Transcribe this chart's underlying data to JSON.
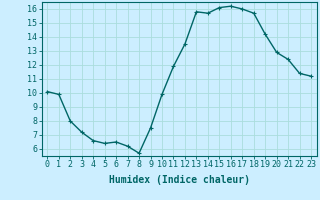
{
  "x": [
    0,
    1,
    2,
    3,
    4,
    5,
    6,
    7,
    8,
    9,
    10,
    11,
    12,
    13,
    14,
    15,
    16,
    17,
    18,
    19,
    20,
    21,
    22,
    23
  ],
  "y": [
    10.1,
    9.9,
    8.0,
    7.2,
    6.6,
    6.4,
    6.5,
    6.2,
    5.7,
    7.5,
    9.9,
    11.9,
    13.5,
    15.8,
    15.7,
    16.1,
    16.2,
    16.0,
    15.7,
    14.2,
    12.9,
    12.4,
    11.4,
    11.2
  ],
  "line_color": "#006666",
  "marker": "+",
  "marker_size": 3,
  "bg_color": "#cceeff",
  "grid_color": "#aadddd",
  "xlabel": "Humidex (Indice chaleur)",
  "xlim": [
    -0.5,
    23.5
  ],
  "ylim": [
    5.5,
    16.5
  ],
  "yticks": [
    6,
    7,
    8,
    9,
    10,
    11,
    12,
    13,
    14,
    15,
    16
  ],
  "xticks": [
    0,
    1,
    2,
    3,
    4,
    5,
    6,
    7,
    8,
    9,
    10,
    11,
    12,
    13,
    14,
    15,
    16,
    17,
    18,
    19,
    20,
    21,
    22,
    23
  ],
  "xlabel_fontsize": 7,
  "tick_fontsize": 6,
  "line_width": 1.0
}
